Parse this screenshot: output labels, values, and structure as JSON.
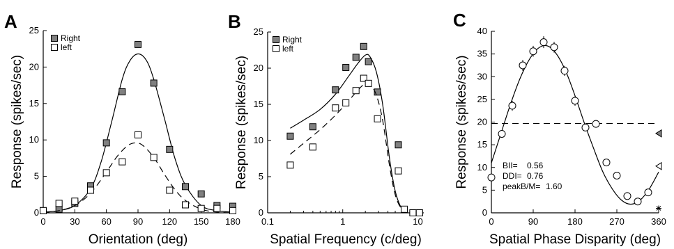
{
  "chart_data": [
    {
      "type": "scatter",
      "panel": "A",
      "xlabel": "Orientation (deg)",
      "ylabel": "Response (spikes/sec)",
      "xscale": "linear",
      "xlim": [
        0,
        180
      ],
      "ylim": [
        0,
        25
      ],
      "xticks": [
        0,
        30,
        60,
        90,
        120,
        150,
        180
      ],
      "yticks": [
        0,
        5,
        10,
        15,
        20,
        25
      ],
      "legend": {
        "placement": "top-left"
      },
      "series": [
        {
          "name": "Right",
          "marker": "filled-square",
          "color": "#808080",
          "x": [
            0,
            15,
            30,
            45,
            60,
            75,
            90,
            105,
            120,
            135,
            150,
            165,
            180
          ],
          "y": [
            0.3,
            0.5,
            1.3,
            3.7,
            9.6,
            16.6,
            23.1,
            17.8,
            8.7,
            3.6,
            2.6,
            1.0,
            0.9
          ],
          "fit": {
            "style": "solid",
            "x": [
              0,
              15,
              30,
              45,
              55,
              65,
              75,
              82,
              90,
              98,
              105,
              115,
              125,
              135,
              150,
              165,
              180
            ],
            "y": [
              0.1,
              0.3,
              1.0,
              3.3,
              7.0,
              12.5,
              18.3,
              20.8,
              21.8,
              20.9,
              18.3,
              13.0,
              7.5,
              3.8,
              1.0,
              0.3,
              0.1
            ]
          }
        },
        {
          "name": "left",
          "marker": "open-square",
          "color": "#ffffff",
          "x": [
            0,
            15,
            30,
            45,
            60,
            75,
            90,
            105,
            120,
            135,
            150,
            165,
            180
          ],
          "y": [
            0.3,
            1.3,
            1.6,
            3.1,
            5.5,
            7.0,
            10.7,
            7.6,
            3.1,
            1.1,
            0.6,
            0.6,
            0.3
          ],
          "fit": {
            "style": "dashed",
            "x": [
              0,
              15,
              30,
              45,
              60,
              70,
              80,
              88,
              95,
              105,
              115,
              125,
              135,
              150,
              165,
              180
            ],
            "y": [
              0.0,
              0.3,
              1.0,
              2.7,
              5.6,
              7.7,
              9.2,
              9.6,
              9.2,
              7.6,
              5.3,
              3.2,
              1.7,
              0.5,
              0.1,
              0.0
            ]
          }
        }
      ]
    },
    {
      "type": "scatter",
      "panel": "B",
      "xlabel": "Spatial Frequency (c/deg)",
      "ylabel": "Response (spikes/sec)",
      "xscale": "log",
      "xlim": [
        0.1,
        12
      ],
      "ylim": [
        0,
        25
      ],
      "xticks": [
        0.1,
        1,
        10
      ],
      "yticks": [
        0,
        5,
        10,
        15,
        20,
        25
      ],
      "legend": {
        "placement": "top-left"
      },
      "series": [
        {
          "name": "Right",
          "marker": "filled-square",
          "color": "#808080",
          "x": [
            0.2,
            0.4,
            0.8,
            1.1,
            1.5,
            1.9,
            2.2,
            2.9,
            5.5,
            8.6,
            10.5
          ],
          "y": [
            10.6,
            11.9,
            17.0,
            20.1,
            21.5,
            23.0,
            20.9,
            16.7,
            9.4,
            0.0,
            0.0
          ],
          "fit": {
            "style": "solid",
            "x": [
              0.2,
              0.3,
              0.5,
              0.8,
              1.2,
              1.6,
              2.0,
              2.3,
              2.8,
              3.4,
              4.2,
              5.0,
              6.0,
              7.0
            ],
            "y": [
              11.7,
              12.8,
              14.3,
              16.4,
              18.9,
              20.7,
              21.8,
              21.6,
              19.5,
              15.0,
              7.5,
              3.0,
              0.7,
              0.0
            ]
          }
        },
        {
          "name": "left",
          "marker": "open-square",
          "color": "#ffffff",
          "x": [
            0.2,
            0.4,
            0.8,
            1.1,
            1.5,
            1.9,
            2.2,
            2.9,
            5.5,
            6.6,
            8.6,
            10.5
          ],
          "y": [
            6.6,
            9.1,
            14.5,
            15.2,
            16.9,
            18.6,
            17.9,
            13.0,
            5.8,
            0.5,
            0.0,
            0.0
          ],
          "fit": {
            "style": "dashed",
            "x": [
              0.2,
              0.3,
              0.5,
              0.8,
              1.2,
              1.6,
              2.0,
              2.3,
              2.8,
              3.4,
              4.2,
              5.0,
              6.0,
              7.0
            ],
            "y": [
              8.1,
              9.6,
              11.5,
              13.5,
              15.5,
              17.0,
              17.9,
              17.8,
              16.3,
              12.8,
              6.5,
              2.5,
              0.6,
              0.0
            ]
          }
        }
      ]
    },
    {
      "type": "scatter",
      "panel": "C",
      "xlabel": "Spatial Phase Disparity (deg)",
      "ylabel": "Response (spikes/sec)",
      "xscale": "linear",
      "xlim": [
        0,
        360
      ],
      "ylim": [
        0,
        40
      ],
      "xticks": [
        0,
        90,
        180,
        270,
        360
      ],
      "yticks": [
        0,
        5,
        10,
        15,
        20,
        25,
        30,
        35,
        40
      ],
      "series": [
        {
          "name": "",
          "marker": "open-circle",
          "color": "#ffffff",
          "x": [
            0,
            22.5,
            45,
            67.5,
            90,
            112.5,
            135,
            157.5,
            180,
            202.5,
            225,
            247.5,
            270,
            292.5,
            315,
            337.5
          ],
          "y": [
            7.8,
            17.4,
            23.6,
            32.5,
            35.6,
            37.6,
            36.5,
            31.3,
            24.7,
            18.8,
            19.6,
            11.1,
            8.2,
            3.7,
            2.5,
            4.5
          ],
          "err": [
            0.8,
            0.8,
            1.1,
            1.2,
            1.2,
            1.3,
            1.2,
            1.1,
            1.1,
            0.8,
            0.8,
            0.7,
            0.6,
            0.5,
            0.4,
            0.5
          ],
          "fit": {
            "style": "solid",
            "x": [
              0,
              20,
              40,
              60,
              80,
              100,
              120,
              140,
              160,
              180,
              200,
              220,
              240,
              260,
              280,
              300,
              320,
              340,
              360
            ],
            "y": [
              11.0,
              17.3,
              23.6,
              29.2,
              33.5,
              36.2,
              36.8,
              35.0,
              31.2,
              25.8,
              19.8,
              14.2,
              9.0,
              5.3,
              2.8,
              1.9,
              2.8,
              5.3,
              9.0
            ]
          }
        }
      ],
      "reference_lines": [
        {
          "style": "dashed",
          "y": 19.7
        }
      ],
      "side_markers": [
        {
          "marker": "filled-triangle-left",
          "color": "#808080",
          "x": 360,
          "y": 17.5
        },
        {
          "marker": "open-triangle-left",
          "color": "#ffffff",
          "x": 360,
          "y": 10.3
        },
        {
          "marker": "asterisk",
          "color": "#000000",
          "x": 360,
          "y": 1.0
        }
      ],
      "annotations": [
        {
          "label": "BII=",
          "value": "0.56"
        },
        {
          "label": "DDI=",
          "value": "0.76"
        },
        {
          "label": "peakB/M=",
          "value": "1.60"
        }
      ]
    }
  ],
  "panels": [
    {
      "letter": "A"
    },
    {
      "letter": "B"
    },
    {
      "letter": "C"
    }
  ]
}
